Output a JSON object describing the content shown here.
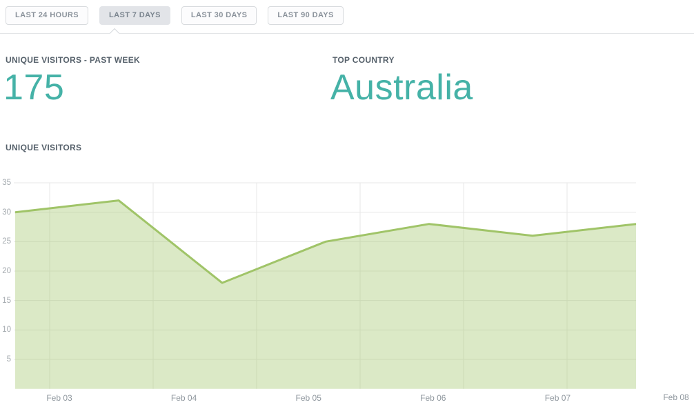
{
  "tabs": {
    "items": [
      {
        "label": "LAST 24 HOURS",
        "selected": false
      },
      {
        "label": "LAST 7 DAYS",
        "selected": true
      },
      {
        "label": "LAST 30 DAYS",
        "selected": false
      },
      {
        "label": "LAST 90 DAYS",
        "selected": false
      }
    ]
  },
  "stats": [
    {
      "label": "UNIQUE VISITORS - PAST WEEK",
      "value": "175"
    },
    {
      "label": "TOP COUNTRY",
      "value": "Australia"
    }
  ],
  "section": {
    "title": "UNIQUE VISITORS"
  },
  "colors": {
    "accent_teal": "#45b2a7",
    "line_green": "#a0c468",
    "fill_green": "rgba(160,196,104,0.38)",
    "gridline": "#e7e7e7",
    "heading": "#56616b",
    "axis_label": "#a4aaaf"
  },
  "chart_data": {
    "type": "area",
    "title": "UNIQUE VISITORS",
    "series_name": "unique visitors",
    "values": [
      30,
      32,
      18,
      25,
      28,
      26,
      28
    ],
    "x_tick_labels": [
      "Feb 03",
      "Feb 04",
      "Feb 05",
      "Feb 06",
      "Feb 07",
      "Feb 08"
    ],
    "y_ticks": [
      5,
      10,
      15,
      20,
      25,
      30,
      35
    ],
    "ylim": [
      0,
      35
    ],
    "grid": true,
    "legend": "none",
    "line_color": "#a0c468",
    "fill_color": "rgba(160,196,104,0.38)"
  }
}
